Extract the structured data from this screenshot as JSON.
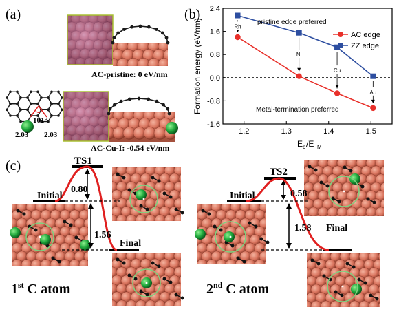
{
  "panel_a": {
    "label": "(a)",
    "top_caption": "AC-pristine: 0 eV/nm",
    "bottom_caption": "AC-Cu-I: -0.54 eV/nm",
    "angle_label": "101°",
    "bond_left": "2.03",
    "bond_right": "2.03"
  },
  "panel_c": {
    "label": "(c)",
    "left": {
      "ts_label": "TS1",
      "initial_label": "Initial",
      "final_label": "Final",
      "barrier": "0.80",
      "drop": "1.56",
      "atom_label": "1",
      "atom_sup": "st",
      "atom_rest": " C atom",
      "colors": {
        "curve": "#e02020",
        "carbon": "#1a1a1a",
        "metal": "#d9745e",
        "dopant": "#2db34a",
        "ring": "#7fd07f"
      }
    },
    "right": {
      "ts_label": "TS2",
      "initial_label": "Initial",
      "final_label": "Final",
      "barrier": "0.58",
      "drop": "1.58",
      "atom_label": "2",
      "atom_sup": "nd",
      "atom_rest": " C atom"
    }
  },
  "chart_data": {
    "panel_label": "(b)",
    "type": "line",
    "xlabel": "Ec/EM",
    "ylabel": "Formation energy (eV/nm)",
    "xlim": [
      1.15,
      1.55
    ],
    "ylim": [
      -1.6,
      2.4
    ],
    "xticks": [
      "1.2",
      "1.3",
      "1.4",
      "1.5"
    ],
    "yticks": [
      "-1.6",
      "-0.8",
      "0.0",
      "0.8",
      "1.6",
      "2.4"
    ],
    "top_annotation": "pristine edge preferred",
    "bottom_annotation": "Metal-termination preferred",
    "legend_position": "right",
    "series": [
      {
        "name": "AC edge",
        "color": "#e8302a",
        "marker": "circle",
        "x": [
          1.185,
          1.33,
          1.42,
          1.505
        ],
        "y": [
          1.4,
          0.05,
          -0.54,
          -1.05
        ]
      },
      {
        "name": "ZZ edge",
        "color": "#2d4ea0",
        "marker": "square",
        "x": [
          1.185,
          1.33,
          1.42,
          1.505
        ],
        "y": [
          2.15,
          1.55,
          1.05,
          0.05
        ]
      }
    ],
    "metal_labels": [
      "Rh",
      "Ni",
      "Cu",
      "Au"
    ]
  }
}
